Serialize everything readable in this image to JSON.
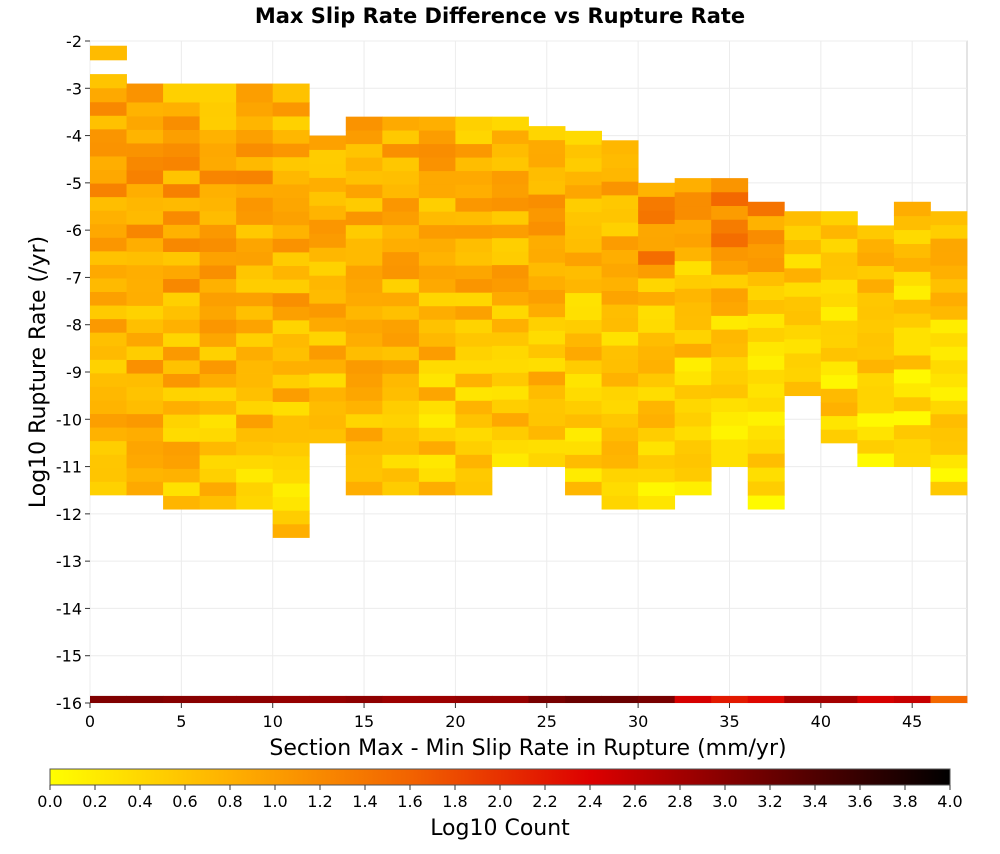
{
  "chart_data": {
    "type": "heatmap",
    "title": "Max Slip Rate Difference vs Rupture Rate",
    "xlabel": "Section Max - Min Slip Rate in Rupture (mm/yr)",
    "ylabel": "Log10 Rupture Rate (/yr)",
    "xlim": [
      0,
      48
    ],
    "ylim": [
      -16,
      -2
    ],
    "x_ticks": [
      "0",
      "5",
      "10",
      "15",
      "20",
      "25",
      "30",
      "35",
      "40",
      "45"
    ],
    "y_ticks": [
      "-2",
      "-3",
      "-4",
      "-5",
      "-6",
      "-7",
      "-8",
      "-9",
      "-10",
      "-11",
      "-12",
      "-13",
      "-14",
      "-15",
      "-16"
    ],
    "x_bin_width": 2,
    "y_bin_height": 0.29,
    "colorbar": {
      "label": "Log10 Count",
      "range": [
        0,
        4
      ],
      "ticks": [
        "0.0",
        "0.2",
        "0.4",
        "0.6",
        "0.8",
        "1.0",
        "1.2",
        "1.4",
        "1.6",
        "1.8",
        "2.0",
        "2.2",
        "2.4",
        "2.6",
        "2.8",
        "3.0",
        "3.2",
        "3.4",
        "3.6",
        "3.8",
        "4.0"
      ],
      "color_stops": [
        "#ffff00",
        "#ffb000",
        "#f26300",
        "#dd0000",
        "#6a0000",
        "#000000"
      ]
    },
    "column_ranges": [
      [
        [
          -2.4,
          -2.1
        ],
        [
          -3.6,
          -2.7
        ],
        [
          -11.6,
          -3.0
        ]
      ],
      [
        [
          -3.3,
          -2.9
        ],
        [
          -11.6,
          -3.3
        ]
      ],
      [
        [
          -3.3,
          -2.9
        ],
        [
          -11.9,
          -3.3
        ]
      ],
      [
        [
          -3.3,
          -2.9
        ],
        [
          -11.9,
          -3.3
        ]
      ],
      [
        [
          -3.3,
          -2.9
        ],
        [
          -11.9,
          -3.3
        ]
      ],
      [
        [
          -3.3,
          -2.9
        ],
        [
          -12.5,
          -3.3
        ]
      ],
      [
        [
          -10.5,
          -4.0
        ]
      ],
      [
        [
          -11.6,
          -3.6
        ]
      ],
      [
        [
          -11.6,
          -3.6
        ]
      ],
      [
        [
          -11.6,
          -3.6
        ]
      ],
      [
        [
          -11.6,
          -3.6
        ]
      ],
      [
        [
          -11.0,
          -3.6
        ]
      ],
      [
        [
          -11.0,
          -3.8
        ]
      ],
      [
        [
          -11.6,
          -3.9
        ]
      ],
      [
        [
          -11.9,
          -4.1
        ]
      ],
      [
        [
          -11.9,
          -5.0
        ]
      ],
      [
        [
          -11.6,
          -4.9
        ]
      ],
      [
        [
          -11.0,
          -4.9
        ]
      ],
      [
        [
          -11.9,
          -5.4
        ]
      ],
      [
        [
          -9.5,
          -5.6
        ]
      ],
      [
        [
          -10.5,
          -5.6
        ]
      ],
      [
        [
          -11.0,
          -5.9
        ]
      ],
      [
        [
          -11.0,
          -5.4
        ]
      ],
      [
        [
          -11.6,
          -5.6
        ]
      ]
    ],
    "floor_row": {
      "y_range": [
        -16.0,
        -15.85
      ],
      "values": [
        3.05,
        3.05,
        3.0,
        2.95,
        2.95,
        2.9,
        2.9,
        2.95,
        2.85,
        2.85,
        2.9,
        2.9,
        3.1,
        3.2,
        3.2,
        3.1,
        2.45,
        2.2,
        2.35,
        2.8,
        2.8,
        2.45,
        2.55,
        1.55
      ]
    }
  }
}
